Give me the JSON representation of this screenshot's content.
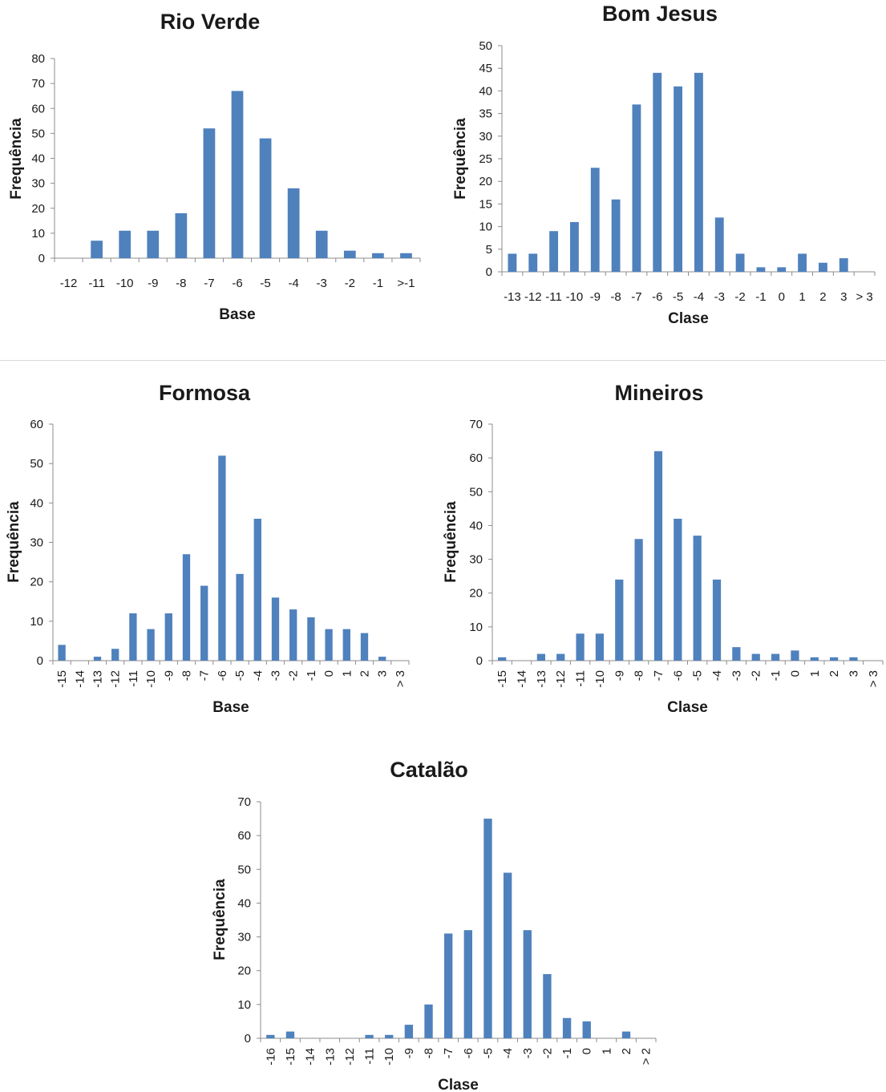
{
  "colors": {
    "bar": "#4f81bd",
    "axis": "#8c8c8c",
    "text": "#1a1a1a"
  },
  "chart_data": [
    {
      "type": "bar",
      "title": "Rio Verde",
      "xlabel": "Base",
      "ylabel": "Frequência",
      "ylim": [
        0,
        80
      ],
      "yticks": [
        0,
        10,
        20,
        30,
        40,
        50,
        60,
        70,
        80
      ],
      "categories": [
        "-12",
        "-11",
        "-10",
        "-9",
        "-8",
        "-7",
        "-6",
        "-5",
        "-4",
        "-3",
        "-2",
        "-1",
        ">-1"
      ],
      "values": [
        0,
        7,
        11,
        11,
        18,
        52,
        67,
        48,
        28,
        11,
        3,
        2,
        2
      ],
      "rotated_ticks": false,
      "grid": false
    },
    {
      "type": "bar",
      "title": "Bom Jesus",
      "xlabel": "Clase",
      "ylabel": "Frequência",
      "ylim": [
        0,
        50
      ],
      "yticks": [
        0,
        5,
        10,
        15,
        20,
        25,
        30,
        35,
        40,
        45,
        50
      ],
      "categories": [
        "-13",
        "-12",
        "-11",
        "-10",
        "-9",
        "-8",
        "-7",
        "-6",
        "-5",
        "-4",
        "-3",
        "-2",
        "-1",
        "0",
        "1",
        "2",
        "3",
        "> 3"
      ],
      "values": [
        4,
        4,
        9,
        11,
        23,
        16,
        37,
        44,
        41,
        44,
        12,
        4,
        1,
        1,
        4,
        2,
        3,
        0
      ],
      "rotated_ticks": false,
      "grid": false
    },
    {
      "type": "bar",
      "title": "Formosa",
      "xlabel": "Base",
      "ylabel": "Frequência",
      "ylim": [
        0,
        60
      ],
      "yticks": [
        0,
        10,
        20,
        30,
        40,
        50,
        60
      ],
      "categories": [
        "-15",
        "-14",
        "-13",
        "-12",
        "-11",
        "-10",
        "-9",
        "-8",
        "-7",
        "-6",
        "-5",
        "-4",
        "-3",
        "-2",
        "-1",
        "0",
        "1",
        "2",
        "3",
        "> 3"
      ],
      "values": [
        4,
        0,
        1,
        3,
        12,
        8,
        12,
        27,
        19,
        52,
        22,
        36,
        16,
        13,
        11,
        8,
        8,
        7,
        1,
        0
      ],
      "rotated_ticks": true,
      "grid": false
    },
    {
      "type": "bar",
      "title": "Mineiros",
      "xlabel": "Clase",
      "ylabel": "Frequência",
      "ylim": [
        0,
        70
      ],
      "yticks": [
        0,
        10,
        20,
        30,
        40,
        50,
        60,
        70
      ],
      "categories": [
        "-15",
        "-14",
        "-13",
        "-12",
        "-11",
        "-10",
        "-9",
        "-8",
        "-7",
        "-6",
        "-5",
        "-4",
        "-3",
        "-2",
        "-1",
        "0",
        "1",
        "2",
        "3",
        "> 3"
      ],
      "values": [
        1,
        0,
        2,
        2,
        8,
        8,
        24,
        36,
        62,
        42,
        37,
        24,
        4,
        2,
        2,
        3,
        1,
        1,
        1,
        0
      ],
      "rotated_ticks": true,
      "grid": false
    },
    {
      "type": "bar",
      "title": "Catalão",
      "xlabel": "Clase",
      "ylabel": "Frequência",
      "ylim": [
        0,
        70
      ],
      "yticks": [
        0,
        10,
        20,
        30,
        40,
        50,
        60,
        70
      ],
      "categories": [
        "-16",
        "-15",
        "-14",
        "-13",
        "-12",
        "-11",
        "-10",
        "-9",
        "-8",
        "-7",
        "-6",
        "-5",
        "-4",
        "-3",
        "-2",
        "-1",
        "0",
        "1",
        "2",
        "> 2"
      ],
      "values": [
        1,
        2,
        0,
        0,
        0,
        1,
        1,
        4,
        10,
        31,
        32,
        65,
        49,
        32,
        19,
        6,
        5,
        0,
        2,
        0
      ],
      "rotated_ticks": true,
      "grid": false
    }
  ]
}
